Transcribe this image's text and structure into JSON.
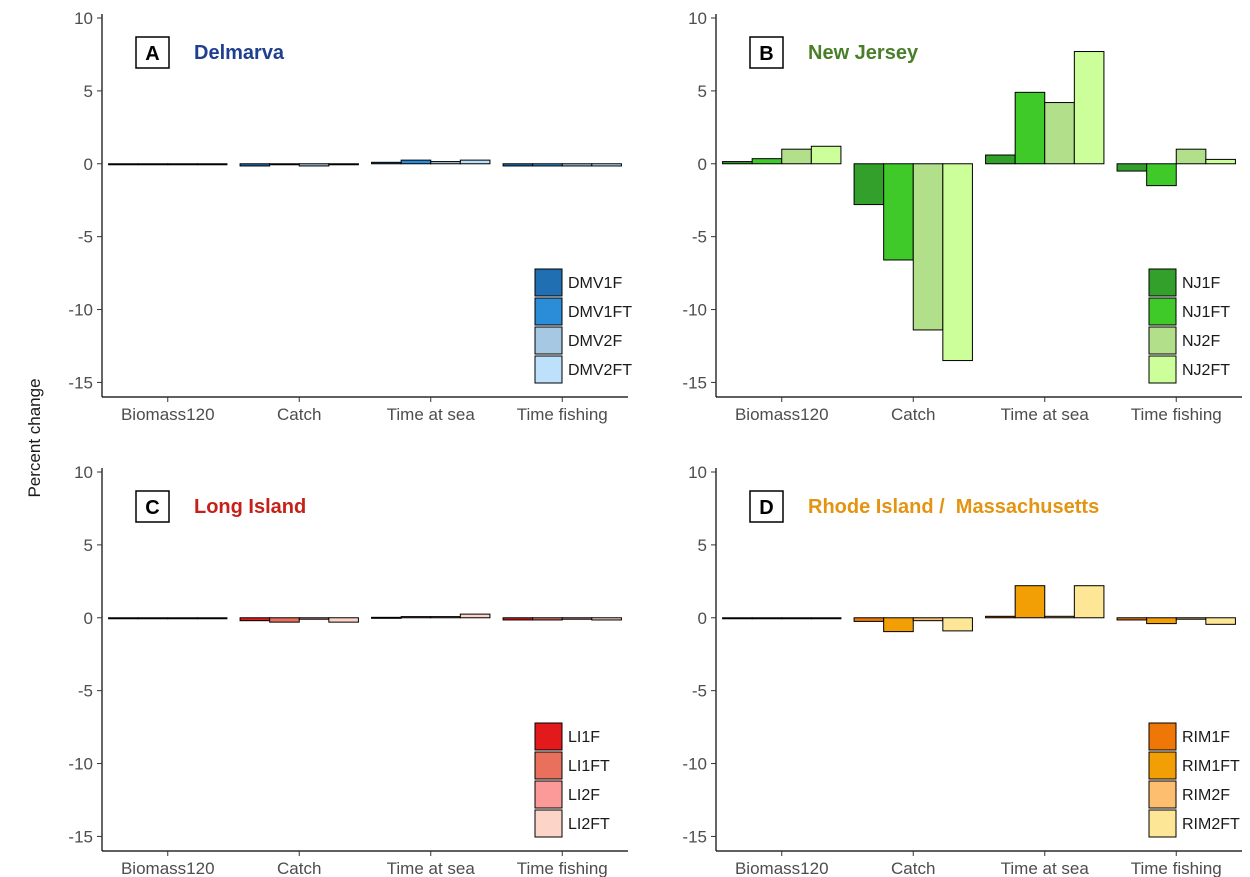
{
  "y_axis_label": "Percent change",
  "chart_data": [
    {
      "type": "bar",
      "panel": "A",
      "title": "Delmarva",
      "title_color": "#1f3f8f",
      "categories": [
        "Biomass120",
        "Catch",
        "Time at sea",
        "Time fishing"
      ],
      "ylim": [
        -16,
        10
      ],
      "yticks": [
        10,
        5,
        0,
        -5,
        -10,
        -15
      ],
      "legend_position": "bottom-right",
      "series": [
        {
          "name": "DMV1F",
          "color": "#1f6fb2",
          "values": [
            0,
            -0.15,
            0.1,
            -0.15
          ]
        },
        {
          "name": "DMV1FT",
          "color": "#2b8cd8",
          "values": [
            0,
            -0.05,
            0.25,
            -0.15
          ]
        },
        {
          "name": "DMV2F",
          "color": "#a6c8e2",
          "values": [
            0,
            -0.15,
            0.15,
            -0.15
          ]
        },
        {
          "name": "DMV2FT",
          "color": "#bde1fa",
          "values": [
            0,
            -0.05,
            0.25,
            -0.15
          ]
        }
      ]
    },
    {
      "type": "bar",
      "panel": "B",
      "title": "New Jersey",
      "title_color": "#4a7f2a",
      "categories": [
        "Biomass120",
        "Catch",
        "Time at sea",
        "Time fishing"
      ],
      "ylim": [
        -16,
        10
      ],
      "yticks": [
        10,
        5,
        0,
        -5,
        -10,
        -15
      ],
      "legend_position": "bottom-right",
      "series": [
        {
          "name": "NJ1F",
          "color": "#33a02c",
          "values": [
            0.15,
            -2.8,
            0.6,
            -0.5
          ]
        },
        {
          "name": "NJ1FT",
          "color": "#3fca2a",
          "values": [
            0.35,
            -6.6,
            4.9,
            -1.5
          ]
        },
        {
          "name": "NJ2F",
          "color": "#b2df8a",
          "values": [
            1.0,
            -11.4,
            4.2,
            1.0
          ]
        },
        {
          "name": "NJ2FT",
          "color": "#ccff99",
          "values": [
            1.2,
            -13.5,
            7.7,
            0.3
          ]
        }
      ]
    },
    {
      "type": "bar",
      "panel": "C",
      "title": "Long Island",
      "title_color": "#c62118",
      "categories": [
        "Biomass120",
        "Catch",
        "Time at sea",
        "Time fishing"
      ],
      "ylim": [
        -16,
        10
      ],
      "yticks": [
        10,
        5,
        0,
        -5,
        -10,
        -15
      ],
      "legend_position": "bottom-right",
      "series": [
        {
          "name": "LI1F",
          "color": "#e31a1c",
          "values": [
            0,
            -0.2,
            0.03,
            -0.15
          ]
        },
        {
          "name": "LI1FT",
          "color": "#e8705c",
          "values": [
            0,
            -0.3,
            0.08,
            -0.15
          ]
        },
        {
          "name": "LI2F",
          "color": "#fb9a99",
          "values": [
            0,
            -0.1,
            0.08,
            -0.1
          ]
        },
        {
          "name": "LI2FT",
          "color": "#fcd5c8",
          "values": [
            0,
            -0.3,
            0.25,
            -0.15
          ]
        }
      ]
    },
    {
      "type": "bar",
      "panel": "D",
      "title": "Rhode Island /  Massachusetts",
      "title_color": "#e39410",
      "categories": [
        "Biomass120",
        "Catch",
        "Time at sea",
        "Time fishing"
      ],
      "ylim": [
        -16,
        10
      ],
      "yticks": [
        10,
        5,
        0,
        -5,
        -10,
        -15
      ],
      "legend_position": "bottom-right",
      "series": [
        {
          "name": "RIM1F",
          "color": "#ee7708",
          "values": [
            0,
            -0.25,
            0.1,
            -0.15
          ]
        },
        {
          "name": "RIM1FT",
          "color": "#f29f05",
          "values": [
            0,
            -0.95,
            2.2,
            -0.4
          ]
        },
        {
          "name": "RIM2F",
          "color": "#fdbf6f",
          "values": [
            0,
            -0.2,
            0.1,
            -0.1
          ]
        },
        {
          "name": "RIM2FT",
          "color": "#fde695",
          "values": [
            0,
            -0.9,
            2.2,
            -0.45
          ]
        }
      ]
    }
  ]
}
